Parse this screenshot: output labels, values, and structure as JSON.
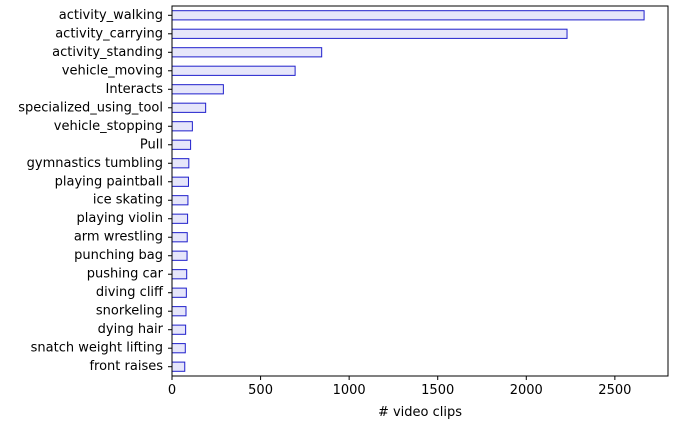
{
  "chart_data": {
    "type": "bar",
    "orientation": "horizontal",
    "categories": [
      "activity_walking",
      "activity_carrying",
      "activity_standing",
      "vehicle_moving",
      "Interacts",
      "specialized_using_tool",
      "vehicle_stopping",
      "Pull",
      "gymnastics tumbling",
      "playing paintball",
      "ice skating",
      "playing violin",
      "arm wrestling",
      "punching bag",
      "pushing car",
      "diving cliff",
      "snorkeling",
      "dying hair",
      "snatch weight lifting",
      "front raises"
    ],
    "values": [
      2665,
      2230,
      845,
      695,
      290,
      190,
      115,
      105,
      95,
      93,
      90,
      88,
      86,
      85,
      83,
      81,
      79,
      77,
      75,
      72
    ],
    "xlabel": "# video clips",
    "ylabel": "",
    "xlim": [
      0,
      2800
    ],
    "xticks": [
      0,
      500,
      1000,
      1500,
      2000,
      2500
    ],
    "grid": false,
    "legend": "none",
    "bar_fill": "#e6e6fa",
    "bar_edge": "#1f1fcc"
  }
}
